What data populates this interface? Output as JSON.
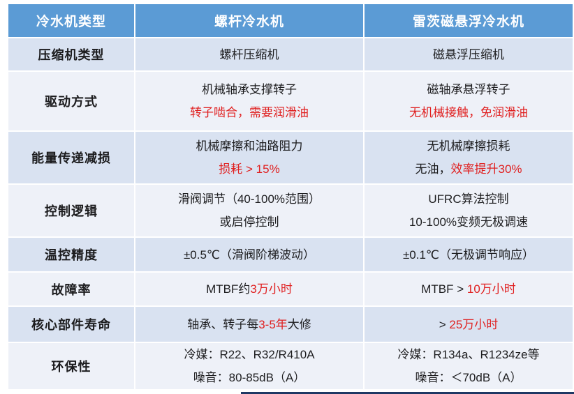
{
  "colors": {
    "header_bg": "#5B9BD5",
    "header_text": "#FFFFFF",
    "row_light_blue": "#D9E2F1",
    "row_pale": "#EEF1F8",
    "text_dark": "#1C1C1E",
    "highlight_red": "#E02020",
    "bottom_bar": "#1F3864"
  },
  "table": {
    "header": [
      "冷水机类型",
      "螺杆冷水机",
      "雷茨磁悬浮冷水机"
    ],
    "rows": [
      {
        "label": "压缩机类型",
        "screw": [
          [
            {
              "text": "螺杆压缩机",
              "red": false
            }
          ]
        ],
        "maglev": [
          [
            {
              "text": "磁悬浮压缩机",
              "red": false
            }
          ]
        ]
      },
      {
        "label": "驱动方式",
        "screw": [
          [
            {
              "text": "机械轴承支撑转子",
              "red": false
            }
          ],
          [
            {
              "text": "转子啮合，需要润滑油",
              "red": true
            }
          ]
        ],
        "maglev": [
          [
            {
              "text": "磁轴承悬浮转子",
              "red": false
            }
          ],
          [
            {
              "text": "无机械接触，免润滑油",
              "red": true
            }
          ]
        ]
      },
      {
        "label": "能量传递减损",
        "screw": [
          [
            {
              "text": "机械摩擦和油路阻力",
              "red": false
            }
          ],
          [
            {
              "text": "损耗 > 15%",
              "red": true
            }
          ]
        ],
        "maglev": [
          [
            {
              "text": "无机械摩擦损耗",
              "red": false
            }
          ],
          [
            {
              "text": "无油，",
              "red": false
            },
            {
              "text": "效率提升30%",
              "red": true
            }
          ]
        ]
      },
      {
        "label": "控制逻辑",
        "screw": [
          [
            {
              "text": "滑阀调节（40-100%范围）",
              "red": false
            }
          ],
          [
            {
              "text": "或启停控制",
              "red": false
            }
          ]
        ],
        "maglev": [
          [
            {
              "text": "UFRC算法控制",
              "red": false
            }
          ],
          [
            {
              "text": "10-100%变频无极调速",
              "red": false
            }
          ]
        ]
      },
      {
        "label": "温控精度",
        "screw": [
          [
            {
              "text": "±0.5℃（滑阀阶梯波动）",
              "red": false
            }
          ]
        ],
        "maglev": [
          [
            {
              "text": "±0.1℃（无极调节响应）",
              "red": false
            }
          ]
        ]
      },
      {
        "label": "故障率",
        "screw": [
          [
            {
              "text": "MTBF约",
              "red": false
            },
            {
              "text": "3万小时",
              "red": true
            }
          ]
        ],
        "maglev": [
          [
            {
              "text": "MTBF > ",
              "red": false
            },
            {
              "text": "10万小时",
              "red": true
            }
          ]
        ]
      },
      {
        "label": "核心部件寿命",
        "screw": [
          [
            {
              "text": "轴承、转子每",
              "red": false
            },
            {
              "text": "3-5年",
              "red": true
            },
            {
              "text": "大修",
              "red": false
            }
          ]
        ],
        "maglev": [
          [
            {
              "text": "> ",
              "red": false
            },
            {
              "text": "25万小时",
              "red": true
            }
          ]
        ]
      },
      {
        "label": "环保性",
        "screw": [
          [
            {
              "text": "冷媒：R22、R32/R410A",
              "red": false
            }
          ],
          [
            {
              "text": "噪音：80-85dB（A）",
              "red": false
            }
          ]
        ],
        "maglev": [
          [
            {
              "text": "冷媒：R134a、R1234ze等",
              "red": false
            }
          ],
          [
            {
              "text": "噪音：＜70dB（A）",
              "red": false
            }
          ]
        ]
      }
    ]
  }
}
